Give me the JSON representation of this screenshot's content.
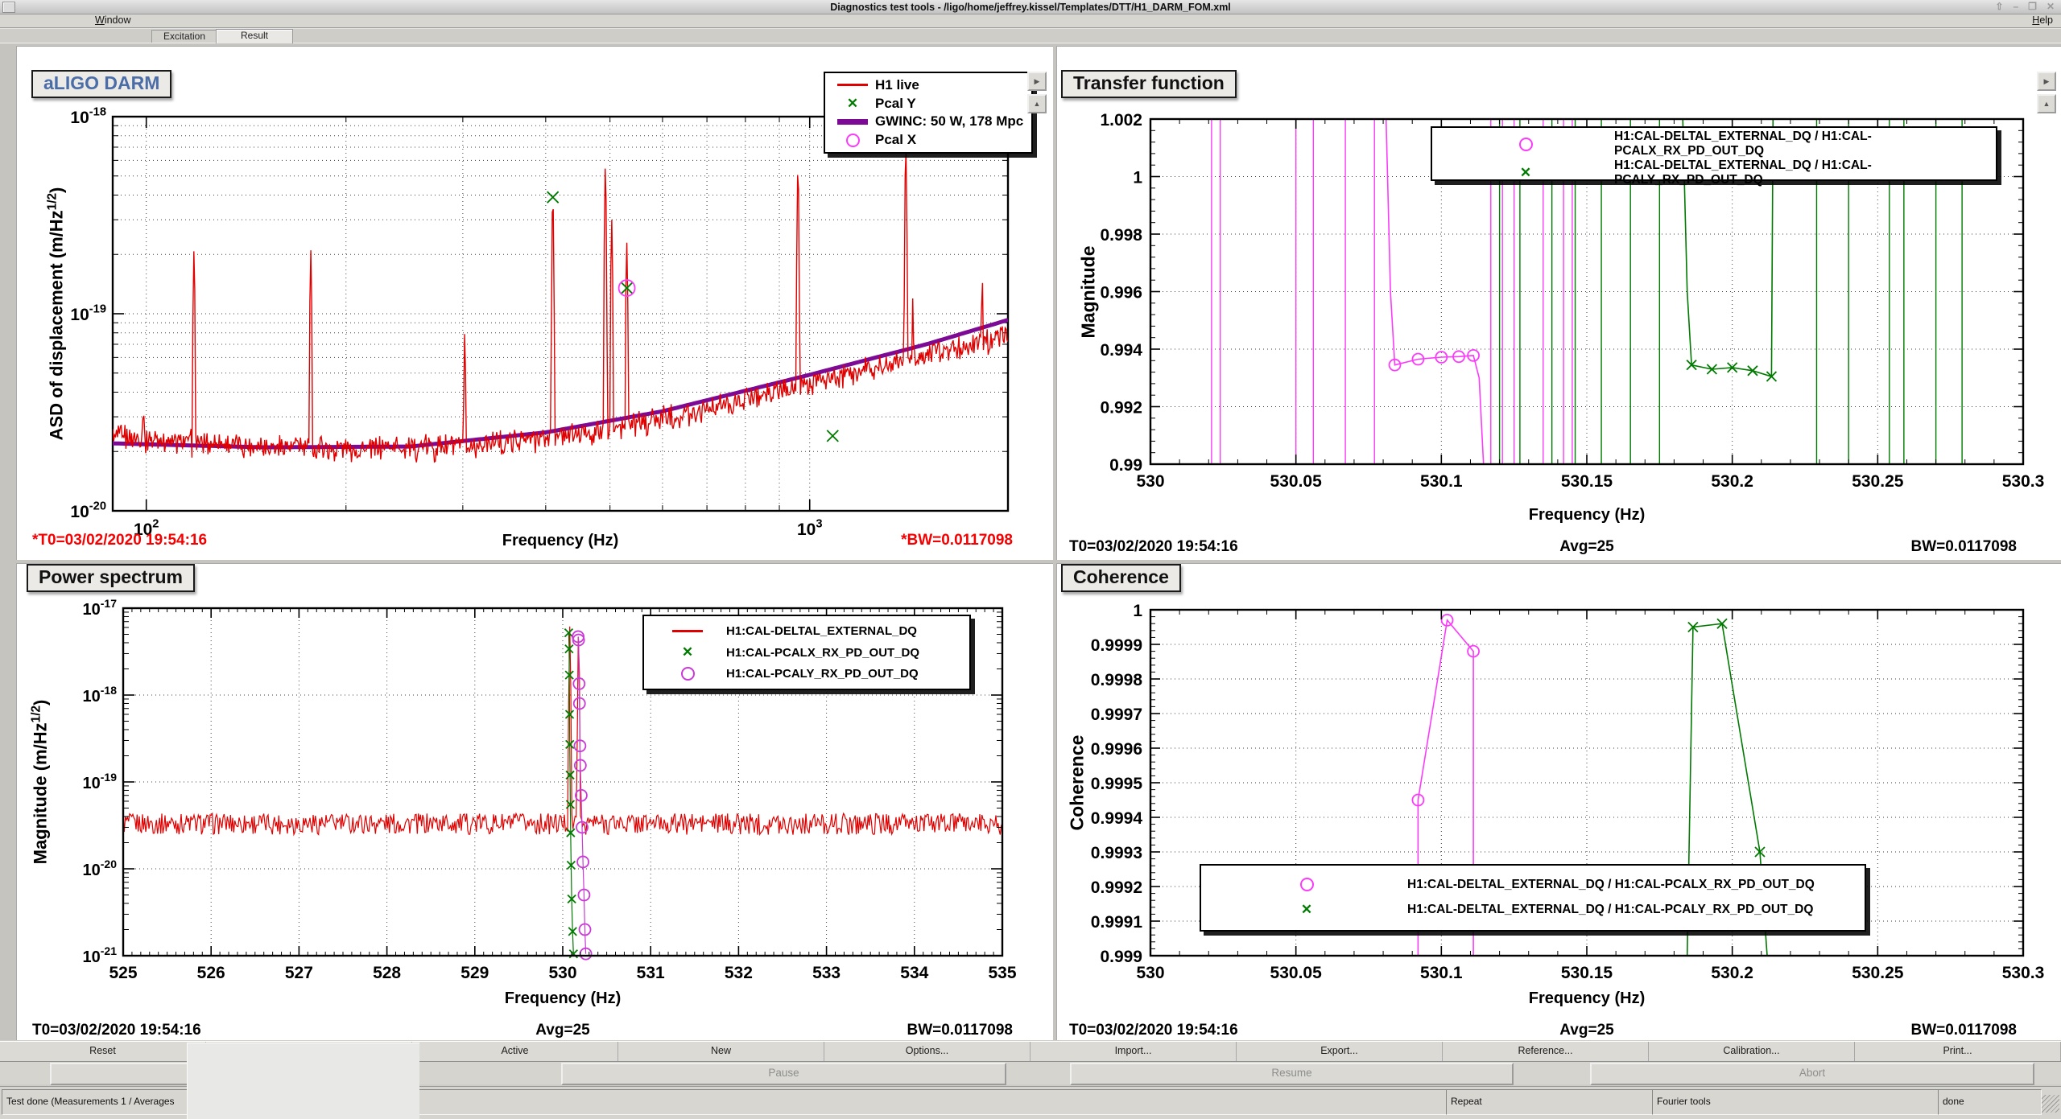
{
  "window": {
    "title": "Diagnostics test tools - /ligo/home/jeffrey.kissel/Templates/DTT/H1_DARM_FOM.xml",
    "controls": {
      "shade": "⇧",
      "minimize": "–",
      "maximize": "❐",
      "close": "✕"
    }
  },
  "menubar": {
    "window_mnemonic": "W",
    "window_rest": "indow",
    "help_mnemonic": "H",
    "help_rest": "elp"
  },
  "tabs": {
    "excitation": "Excitation",
    "result": "Result"
  },
  "toolbar": [
    "Reset",
    "",
    "Active",
    "New",
    "Options...",
    "Import...",
    "Export...",
    "Reference...",
    "Calibration...",
    "Print..."
  ],
  "controls": {
    "pause": "Pause",
    "resume": "Resume",
    "abort": "Abort"
  },
  "statusbar": {
    "message": "Test done (Measurements 1 / Averages",
    "repeat": "Repeat",
    "tools": "Fourier tools",
    "state": "done"
  },
  "plots": {
    "darm": {
      "title": "aLIGO DARM",
      "xlabel": "Frequency (Hz)",
      "ylabel": {
        "pre": "ASD of displacement (m/Hz",
        "sup": "1/2",
        "post": ")"
      },
      "footer": {
        "t0": "*T0=03/02/2020 19:54:16",
        "bw": "*BW=0.0117098"
      },
      "legend": [
        {
          "marker": "line",
          "color": "#e00000",
          "label": "H1 live"
        },
        {
          "marker": "cross",
          "color": "#007a00",
          "label": "Pcal Y"
        },
        {
          "marker": "thick-line",
          "color": "#7c0a94",
          "label": "GWINC: 50 W, 178 Mpc"
        },
        {
          "marker": "circle",
          "color": "#fa3cfa",
          "label": "Pcal X"
        }
      ],
      "chart_data": {
        "type": "line",
        "x_scale": "log",
        "y_scale": "log",
        "xlim": [
          89,
          1990
        ],
        "ylim": [
          1e-20,
          1e-18
        ],
        "x_ticks_exp": [
          "2",
          "3"
        ],
        "y_ticks_exp": [
          "-18",
          "-19",
          "-20"
        ],
        "noise_floor": [
          [
            89,
            2.4e-20
          ],
          [
            110,
            2.25e-20
          ],
          [
            150,
            2.15e-20
          ],
          [
            200,
            2.08e-20
          ],
          [
            300,
            2.12e-20
          ],
          [
            400,
            2.35e-20
          ],
          [
            500,
            2.6e-20
          ],
          [
            700,
            3.3e-20
          ],
          [
            1000,
            4.4e-20
          ],
          [
            1400,
            5.9e-20
          ],
          [
            1990,
            7.8e-20
          ]
        ],
        "gwinc": [
          [
            89,
            2.2e-20
          ],
          [
            150,
            2.1e-20
          ],
          [
            250,
            2.12e-20
          ],
          [
            400,
            2.5e-20
          ],
          [
            600,
            3.2e-20
          ],
          [
            1000,
            4.9e-20
          ],
          [
            1500,
            7e-20
          ],
          [
            1990,
            9.3e-20
          ]
        ],
        "peaks": [
          [
            99,
            3.5e-20
          ],
          [
            118,
            2.1e-19
          ],
          [
            177,
            2.1e-19
          ],
          [
            302,
            8e-20
          ],
          [
            410,
            3.9e-19
          ],
          [
            492,
            5.6e-19
          ],
          [
            503,
            3e-19
          ],
          [
            530,
            2.3e-19
          ],
          [
            960,
            5.5e-19
          ],
          [
            1396,
            7e-19
          ],
          [
            1430,
            1.2e-19
          ],
          [
            1820,
            1.5e-19
          ]
        ],
        "pcal_y_markers": [
          [
            410,
            3.9e-19
          ],
          [
            530.2,
            1.35e-19
          ],
          [
            1083,
            2.4e-20
          ]
        ],
        "pcal_x_markers": [
          [
            530.1,
            1.35e-19
          ]
        ]
      }
    },
    "tf": {
      "title": "Transfer function",
      "xlabel": "Frequency (Hz)",
      "ylabel": "Magnitude",
      "footer": {
        "t0": "T0=03/02/2020 19:54:16",
        "avg": "Avg=25",
        "bw": "BW=0.0117098"
      },
      "legend": [
        {
          "marker": "circle",
          "color": "#fa3cfa",
          "label": "H1:CAL-DELTAL_EXTERNAL_DQ / H1:CAL-PCALX_RX_PD_OUT_DQ"
        },
        {
          "marker": "cross",
          "color": "#007a00",
          "label": "H1:CAL-DELTAL_EXTERNAL_DQ / H1:CAL-PCALY_RX_PD_OUT_DQ"
        }
      ],
      "chart_data": {
        "type": "line",
        "xlim": [
          530,
          530.3
        ],
        "ylim": [
          0.99,
          1.002
        ],
        "x_ticks": [
          "530",
          "530.05",
          "530.1",
          "530.15",
          "530.2",
          "530.25",
          "530.3"
        ],
        "y_ticks": [
          "1.002",
          "1",
          "0.998",
          "0.996",
          "0.994",
          "0.992",
          "0.99"
        ],
        "pcalx_vlines": [
          530.021,
          530.024,
          530.05,
          530.056,
          530.067,
          530.077,
          530.117,
          530.121,
          530.125,
          530.135,
          530.142,
          530.145
        ],
        "pcalx_trace": [
          [
            530.081,
            1.002
          ],
          [
            530.0825,
            0.996
          ],
          [
            530.084,
            0.99345
          ],
          [
            530.092,
            0.99365
          ],
          [
            530.1,
            0.99372
          ],
          [
            530.106,
            0.99374
          ],
          [
            530.111,
            0.99378
          ],
          [
            530.113,
            0.993
          ],
          [
            530.1145,
            0.99
          ]
        ],
        "pcalx_markers": [
          [
            530.084,
            0.99345
          ],
          [
            530.092,
            0.99365
          ],
          [
            530.1,
            0.99372
          ],
          [
            530.106,
            0.99374
          ],
          [
            530.111,
            0.99378
          ]
        ],
        "pcaly_vlines": [
          530.12,
          530.127,
          530.138,
          530.146,
          530.155,
          530.165,
          530.175,
          530.229,
          530.24,
          530.254,
          530.259,
          530.27,
          530.279
        ],
        "pcaly_trace": [
          [
            530.183,
            1.002
          ],
          [
            530.1845,
            0.996
          ],
          [
            530.186,
            0.99345
          ],
          [
            530.193,
            0.9933
          ],
          [
            530.2,
            0.99336
          ],
          [
            530.207,
            0.99325
          ],
          [
            530.2135,
            0.99305
          ],
          [
            530.214,
            1.002
          ]
        ],
        "pcaly_markers": [
          [
            530.186,
            0.99345
          ],
          [
            530.193,
            0.9933
          ],
          [
            530.2,
            0.99336
          ],
          [
            530.207,
            0.99325
          ],
          [
            530.2135,
            0.99305
          ]
        ]
      }
    },
    "ps": {
      "title": "Power spectrum",
      "xlabel": "Frequency (Hz)",
      "ylabel": {
        "pre": "Magnitude (m/Hz",
        "sup": "1/2",
        "post": ")"
      },
      "footer": {
        "t0": "T0=03/02/2020 19:54:16",
        "avg": "Avg=25",
        "bw": "BW=0.0117098"
      },
      "legend": [
        {
          "marker": "line",
          "color": "#e00000",
          "label": "H1:CAL-DELTAL_EXTERNAL_DQ"
        },
        {
          "marker": "cross",
          "color": "#007a00",
          "label": "H1:CAL-PCALX_RX_PD_OUT_DQ"
        },
        {
          "marker": "circle",
          "color": "#c93ad6",
          "label": "H1:CAL-PCALY_RX_PD_OUT_DQ"
        }
      ],
      "chart_data": {
        "type": "line",
        "x_scale": "linear",
        "y_scale": "log",
        "xlim": [
          525,
          535
        ],
        "ylim": [
          1e-21,
          1e-17
        ],
        "x_ticks": [
          "525",
          "526",
          "527",
          "528",
          "529",
          "530",
          "531",
          "532",
          "533",
          "534",
          "535"
        ],
        "y_ticks_exp": [
          "-17",
          "-18",
          "-19",
          "-20",
          "-21"
        ],
        "baseline_level": 3.4e-20,
        "spikes": [
          [
            530.08,
            6.2e-18
          ],
          [
            530.18,
            5.2e-18
          ]
        ],
        "pcalx_chain": [
          [
            530.068,
            5.2e-18
          ],
          [
            530.072,
            3.4e-18
          ],
          [
            530.075,
            1.7e-18
          ],
          [
            530.078,
            6e-19
          ],
          [
            530.08,
            2.7e-19
          ],
          [
            530.083,
            1.2e-19
          ],
          [
            530.086,
            5.5e-20
          ],
          [
            530.09,
            2.6e-20
          ],
          [
            530.095,
            1.1e-20
          ],
          [
            530.102,
            4.5e-21
          ],
          [
            530.112,
            1.9e-21
          ],
          [
            530.122,
            1.05e-21
          ]
        ],
        "pcaly_chain": [
          [
            530.175,
            4.7e-18
          ],
          [
            530.18,
            4.3e-18
          ],
          [
            530.186,
            1.35e-18
          ],
          [
            530.19,
            8e-19
          ],
          [
            530.196,
            2.6e-19
          ],
          [
            530.2,
            1.55e-19
          ],
          [
            530.21,
            7e-20
          ],
          [
            530.22,
            3e-20
          ],
          [
            530.23,
            1.2e-20
          ],
          [
            530.242,
            5e-21
          ],
          [
            530.252,
            2e-21
          ],
          [
            530.262,
            1.05e-21
          ]
        ]
      }
    },
    "coh": {
      "title": "Coherence",
      "xlabel": "Frequency (Hz)",
      "ylabel": "Coherence",
      "footer": {
        "t0": "T0=03/02/2020 19:54:16",
        "avg": "Avg=25",
        "bw": "BW=0.0117098"
      },
      "legend": [
        {
          "marker": "circle",
          "color": "#fa3cfa",
          "label": "H1:CAL-DELTAL_EXTERNAL_DQ / H1:CAL-PCALX_RX_PD_OUT_DQ"
        },
        {
          "marker": "cross",
          "color": "#007a00",
          "label": "H1:CAL-DELTAL_EXTERNAL_DQ / H1:CAL-PCALY_RX_PD_OUT_DQ"
        }
      ],
      "chart_data": {
        "type": "line",
        "xlim": [
          530,
          530.3
        ],
        "ylim": [
          0.999,
          1
        ],
        "x_ticks": [
          "530",
          "530.05",
          "530.1",
          "530.15",
          "530.2",
          "530.25",
          "530.3"
        ],
        "y_ticks": [
          "1",
          "0.9999",
          "0.9998",
          "0.9997",
          "0.9996",
          "0.9995",
          "0.9994",
          "0.9993",
          "0.9992",
          "0.9991",
          "0.999"
        ],
        "pcalx_trace": [
          [
            530.092,
            0.999
          ],
          [
            530.092,
            0.99945
          ],
          [
            530.102,
            0.99997
          ],
          [
            530.111,
            0.99988
          ],
          [
            530.111,
            0.999
          ]
        ],
        "pcalx_markers": [
          [
            530.092,
            0.99945
          ],
          [
            530.102,
            0.99997
          ],
          [
            530.111,
            0.99988
          ]
        ],
        "pcaly_trace": [
          [
            530.1845,
            0.999
          ],
          [
            530.1865,
            0.99995
          ],
          [
            530.1965,
            0.99996
          ],
          [
            530.2095,
            0.9993
          ],
          [
            530.212,
            0.999
          ]
        ],
        "pcaly_markers": [
          [
            530.1865,
            0.99995
          ],
          [
            530.1965,
            0.99996
          ],
          [
            530.2095,
            0.9993
          ]
        ]
      }
    }
  }
}
